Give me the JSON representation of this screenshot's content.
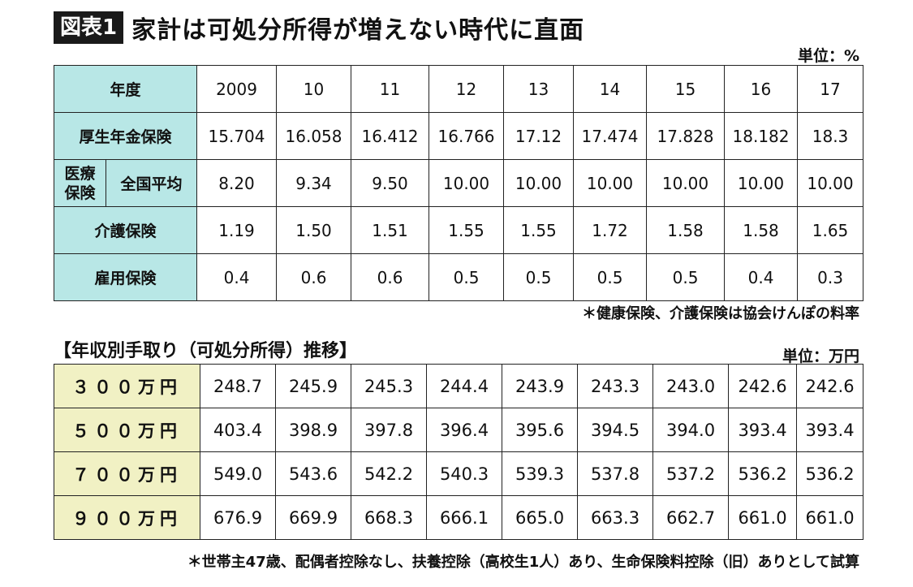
{
  "title": {
    "badge": "図表1",
    "text": "家計は可処分所得が増えない時代に直面"
  },
  "table1": {
    "unit": "単位：%",
    "header_label": "年度",
    "years": [
      "2009",
      "10",
      "11",
      "12",
      "13",
      "14",
      "15",
      "16",
      "17"
    ],
    "rows": [
      {
        "label": "厚生年金保険",
        "values": [
          "15.704",
          "16.058",
          "16.412",
          "16.766",
          "17.12",
          "17.474",
          "17.828",
          "18.182",
          "18.3"
        ]
      },
      {
        "group_label": "医療保険",
        "label": "全国平均",
        "values": [
          "8.20",
          "9.34",
          "9.50",
          "10.00",
          "10.00",
          "10.00",
          "10.00",
          "10.00",
          "10.00"
        ]
      },
      {
        "label": "介護保険",
        "values": [
          "1.19",
          "1.50",
          "1.51",
          "1.55",
          "1.55",
          "1.72",
          "1.58",
          "1.58",
          "1.65"
        ]
      },
      {
        "label": "雇用保険",
        "values": [
          "0.4",
          "0.6",
          "0.6",
          "0.5",
          "0.5",
          "0.5",
          "0.5",
          "0.4",
          "0.3"
        ]
      }
    ],
    "note": "＊健康保険、介護保険は協会けんぽの料率"
  },
  "table2": {
    "title": "【年収別手取り（可処分所得）推移】",
    "unit": "単位：万円",
    "rows": [
      {
        "label": "３００万円",
        "values": [
          "248.7",
          "245.9",
          "245.3",
          "244.4",
          "243.9",
          "243.3",
          "243.0",
          "242.6",
          "242.6"
        ]
      },
      {
        "label": "５００万円",
        "values": [
          "403.4",
          "398.9",
          "397.8",
          "396.4",
          "395.6",
          "394.5",
          "394.0",
          "393.4",
          "393.4"
        ]
      },
      {
        "label": "７００万円",
        "values": [
          "549.0",
          "543.6",
          "542.2",
          "540.3",
          "539.3",
          "537.8",
          "537.2",
          "536.2",
          "536.2"
        ]
      },
      {
        "label": "９００万円",
        "values": [
          "676.9",
          "669.9",
          "668.3",
          "666.1",
          "665.0",
          "663.3",
          "662.7",
          "661.0",
          "661.0"
        ]
      }
    ],
    "note": "＊世帯主47歳、配偶者控除なし、扶養控除（高校生1人）あり、生命保険料控除（旧）ありとして試算"
  }
}
